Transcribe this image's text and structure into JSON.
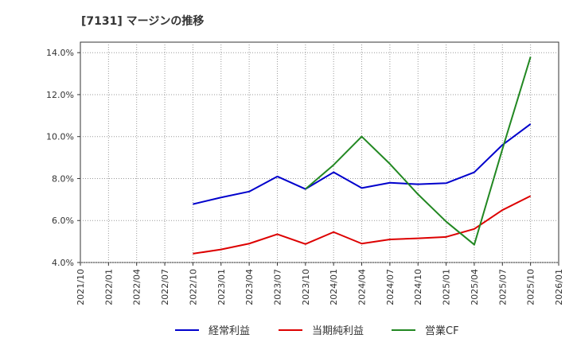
{
  "chart_data": {
    "type": "line",
    "title": "[7131]  マージンの推移",
    "xlabel": "",
    "ylabel": "",
    "ylim": [
      4.0,
      14.5
    ],
    "yticks": [
      4.0,
      6.0,
      8.0,
      10.0,
      12.0,
      14.0
    ],
    "ytick_labels": [
      "4.0%",
      "6.0%",
      "8.0%",
      "10.0%",
      "12.0%",
      "14.0%"
    ],
    "categories": [
      "2021/10",
      "2022/01",
      "2022/04",
      "2022/07",
      "2022/10",
      "2023/01",
      "2023/04",
      "2023/07",
      "2023/10",
      "2024/01",
      "2024/04",
      "2024/07",
      "2024/10",
      "2025/01",
      "2025/04",
      "2025/07",
      "2025/10",
      "2026/01"
    ],
    "grid": true,
    "legend_position": "bottom",
    "series": [
      {
        "name": "経常利益",
        "color": "#0000cc",
        "values": [
          null,
          null,
          null,
          null,
          6.78,
          7.1,
          7.38,
          8.1,
          7.5,
          8.3,
          7.55,
          7.8,
          7.73,
          7.78,
          8.3,
          9.6,
          10.6,
          null
        ]
      },
      {
        "name": "当期純利益",
        "color": "#dd0000",
        "values": [
          null,
          null,
          null,
          null,
          4.42,
          4.62,
          4.9,
          5.35,
          4.88,
          5.45,
          4.9,
          5.1,
          5.15,
          5.22,
          5.6,
          6.5,
          7.17,
          null
        ]
      },
      {
        "name": "営業CF",
        "color": "#228822",
        "values": [
          null,
          null,
          null,
          null,
          null,
          null,
          null,
          null,
          7.5,
          8.65,
          10.0,
          8.7,
          7.25,
          5.95,
          4.85,
          9.4,
          13.8,
          null
        ]
      }
    ]
  }
}
